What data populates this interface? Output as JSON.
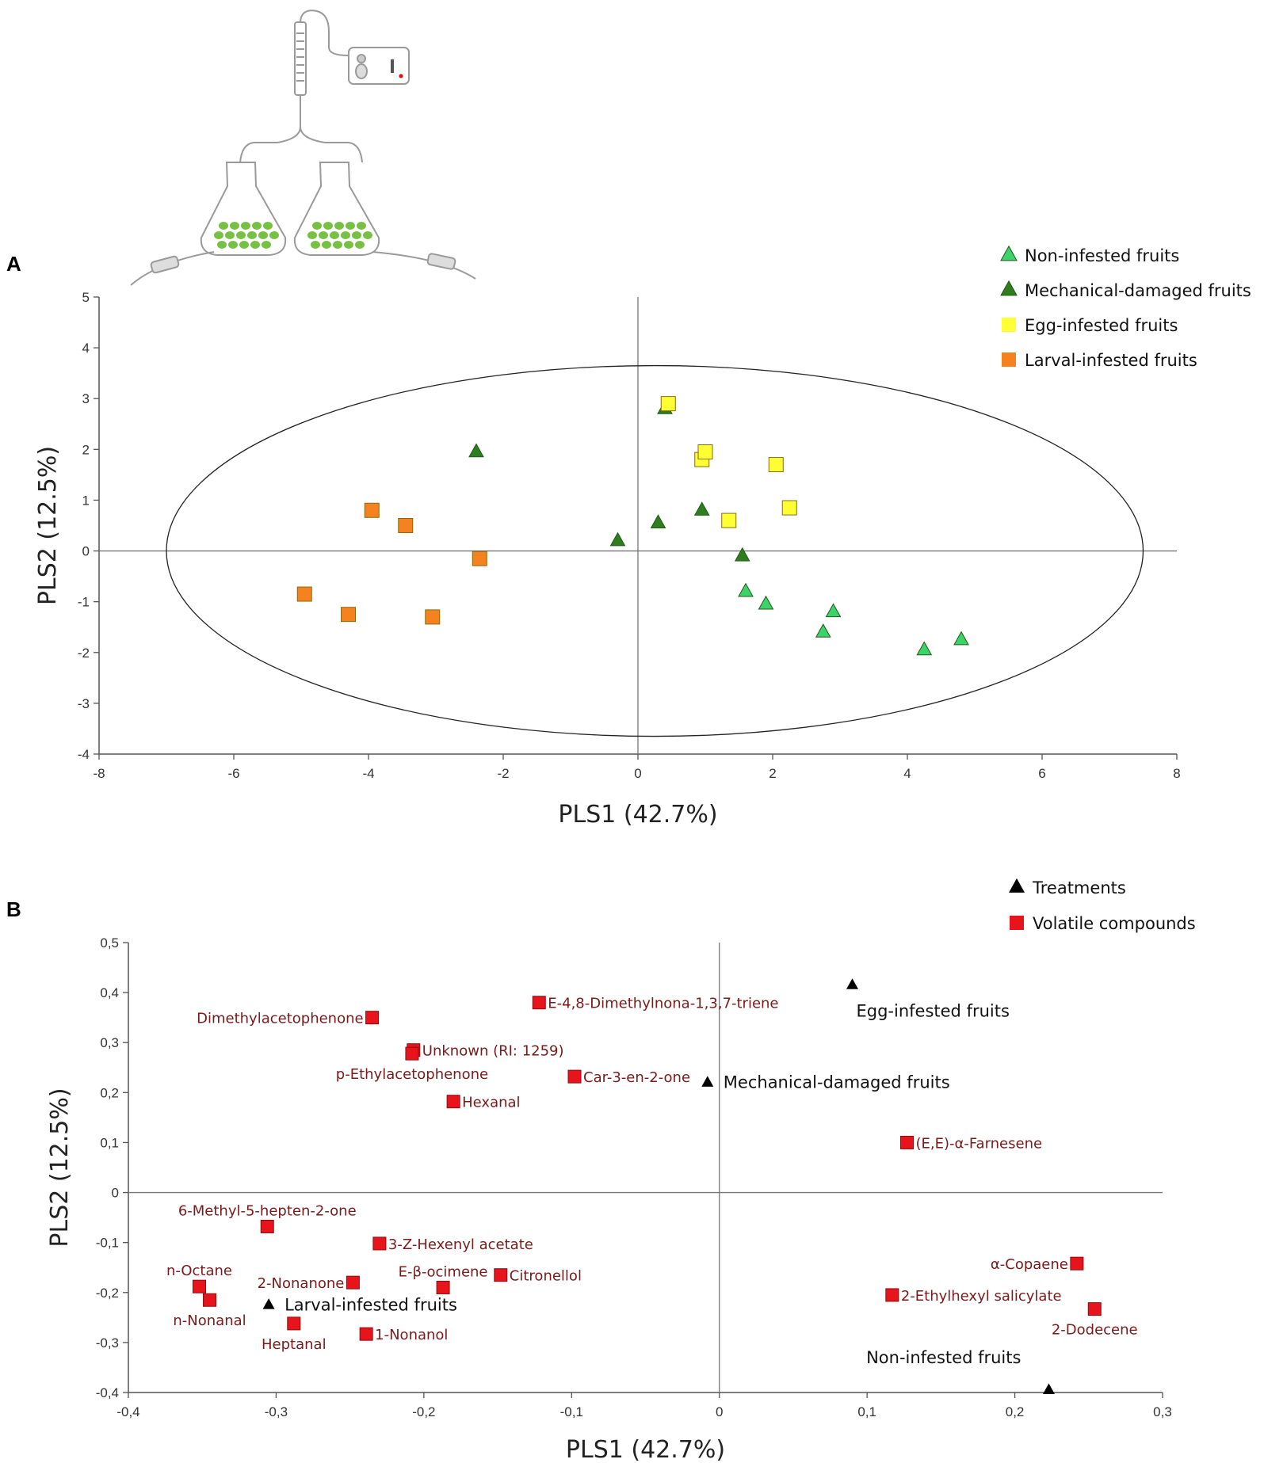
{
  "figure": {
    "panel_a_label": "A",
    "panel_b_label": "B",
    "apparatus_illustration": "volatile-collection-apparatus"
  },
  "colors": {
    "non_infested": "#3dd36b",
    "mechanical": "#2e7d1e",
    "egg": "#ffff33",
    "larval": "#f5821f",
    "compound": "#e8141b",
    "treatment": "#000000",
    "compound_label": "#7a1a1a"
  },
  "chart_data": [
    {
      "id": "A",
      "type": "scatter",
      "title": "",
      "xlabel": "PLS1 (42.7%)",
      "ylabel": "PLS2 (12.5%)",
      "xlim": [
        -8,
        8
      ],
      "ylim": [
        -4,
        5
      ],
      "xticks": [
        -8,
        -6,
        -4,
        -2,
        0,
        2,
        4,
        6,
        8
      ],
      "yticks": [
        -4,
        -3,
        -2,
        -1,
        0,
        1,
        2,
        3,
        4,
        5
      ],
      "xtick_labels": [
        "-8",
        "-6",
        "-4",
        "-2",
        "0",
        "2",
        "4",
        "6",
        "8"
      ],
      "ytick_labels": [
        "-4",
        "-3",
        "-2",
        "-1",
        "0",
        "1",
        "2",
        "3",
        "4",
        "5"
      ],
      "ellipse": {
        "cx": 0.25,
        "cy": 0,
        "rx": 7.25,
        "ry": 3.65
      },
      "legend_position": "top-right",
      "series": [
        {
          "name": "Non-infested  fruits",
          "marker": "triangle",
          "color_key": "non_infested",
          "points": [
            [
              1.6,
              -0.8
            ],
            [
              1.9,
              -1.05
            ],
            [
              2.75,
              -1.6
            ],
            [
              2.9,
              -1.2
            ],
            [
              4.25,
              -1.95
            ],
            [
              4.8,
              -1.75
            ]
          ]
        },
        {
          "name": "Mechanical-damaged  fruits",
          "marker": "triangle",
          "color_key": "mechanical",
          "points": [
            [
              -2.4,
              1.95
            ],
            [
              -0.3,
              0.2
            ],
            [
              0.3,
              0.55
            ],
            [
              0.4,
              2.8
            ],
            [
              0.95,
              0.8
            ],
            [
              1.55,
              -0.1
            ]
          ]
        },
        {
          "name": "Egg-infested fruits",
          "marker": "square",
          "color_key": "egg",
          "points": [
            [
              0.45,
              2.9
            ],
            [
              0.95,
              1.8
            ],
            [
              1.0,
              1.95
            ],
            [
              1.35,
              0.6
            ],
            [
              2.05,
              1.7
            ],
            [
              2.25,
              0.85
            ]
          ]
        },
        {
          "name": "Larval-infested fruits",
          "marker": "square",
          "color_key": "larval",
          "points": [
            [
              -3.95,
              0.8
            ],
            [
              -3.45,
              0.5
            ],
            [
              -2.35,
              -0.15
            ],
            [
              -4.95,
              -0.85
            ],
            [
              -4.3,
              -1.25
            ],
            [
              -3.05,
              -1.3
            ]
          ]
        }
      ]
    },
    {
      "id": "B",
      "type": "scatter",
      "title": "",
      "xlabel": "PLS1 (42.7%)",
      "ylabel": "PLS2 (12.5%)",
      "xlim": [
        -0.4,
        0.3
      ],
      "ylim": [
        -0.4,
        0.5
      ],
      "xticks": [
        -0.4,
        -0.3,
        -0.2,
        -0.1,
        0,
        0.1,
        0.2,
        0.3
      ],
      "yticks": [
        -0.4,
        -0.3,
        -0.2,
        -0.1,
        0,
        0.1,
        0.2,
        0.3,
        0.4,
        0.5
      ],
      "xtick_labels": [
        "-0,4",
        "-0,3",
        "-0,2",
        "-0,1",
        "0",
        "0,1",
        "0,2",
        "0,3"
      ],
      "ytick_labels": [
        "-0,4",
        "-0,3",
        "-0,2",
        "-0,1",
        "0",
        "0,1",
        "0,2",
        "0,3",
        "0,4",
        "0,5"
      ],
      "legend_position": "top-right",
      "series": [
        {
          "name": "Treatments",
          "marker": "triangle",
          "color_key": "treatment",
          "points": [
            {
              "x": 0.09,
              "y": 0.415,
              "label": "Egg-infested fruits",
              "anchor": "below-right"
            },
            {
              "x": -0.008,
              "y": 0.22,
              "label": "Mechanical-damaged fruits",
              "anchor": "right"
            },
            {
              "x": -0.305,
              "y": -0.225,
              "label": "Larval-infested fruits",
              "anchor": "right"
            },
            {
              "x": 0.223,
              "y": -0.395,
              "label": "Non-infested fruits",
              "anchor": "above-left"
            }
          ]
        },
        {
          "name": "Volatile  compounds",
          "marker": "square",
          "color_key": "compound",
          "points": [
            {
              "x": -0.235,
              "y": 0.35,
              "label": "Dimethylacetophenone",
              "anchor": "left"
            },
            {
              "x": -0.122,
              "y": 0.38,
              "label": "E-4,8-Dimethylnona-1,3,7-triene",
              "anchor": "right"
            },
            {
              "x": -0.207,
              "y": 0.285,
              "label": "Unknown (RI: 1259)",
              "anchor": "right"
            },
            {
              "x": -0.208,
              "y": 0.278,
              "label": "p-Ethylacetophenone",
              "anchor": "below"
            },
            {
              "x": -0.098,
              "y": 0.232,
              "label": "Car-3-en-2-one",
              "anchor": "right"
            },
            {
              "x": -0.18,
              "y": 0.182,
              "label": "Hexanal",
              "anchor": "right"
            },
            {
              "x": 0.127,
              "y": 0.1,
              "label": "(E,E)-α-Farnesene",
              "anchor": "right"
            },
            {
              "x": -0.306,
              "y": -0.068,
              "label": "6-Methyl-5-hepten-2-one",
              "anchor": "above"
            },
            {
              "x": -0.23,
              "y": -0.102,
              "label": "3-Z-Hexenyl acetate",
              "anchor": "right"
            },
            {
              "x": -0.352,
              "y": -0.188,
              "label": "n-Octane",
              "anchor": "above"
            },
            {
              "x": -0.345,
              "y": -0.215,
              "label": "n-Nonanal",
              "anchor": "below"
            },
            {
              "x": -0.248,
              "y": -0.18,
              "label": "2-Nonanone",
              "anchor": "left"
            },
            {
              "x": -0.187,
              "y": -0.19,
              "label": "E-β-ocimene",
              "anchor": "above"
            },
            {
              "x": -0.148,
              "y": -0.165,
              "label": "Citronellol",
              "anchor": "right"
            },
            {
              "x": -0.288,
              "y": -0.262,
              "label": "Heptanal",
              "anchor": "below"
            },
            {
              "x": -0.239,
              "y": -0.283,
              "label": "1-Nonanol",
              "anchor": "right"
            },
            {
              "x": 0.242,
              "y": -0.142,
              "label": "α-Copaene",
              "anchor": "left"
            },
            {
              "x": 0.117,
              "y": -0.205,
              "label": "2-Ethylhexyl salicylate",
              "anchor": "right"
            },
            {
              "x": 0.254,
              "y": -0.233,
              "label": "2-Dodecene",
              "anchor": "below"
            }
          ]
        }
      ]
    }
  ]
}
